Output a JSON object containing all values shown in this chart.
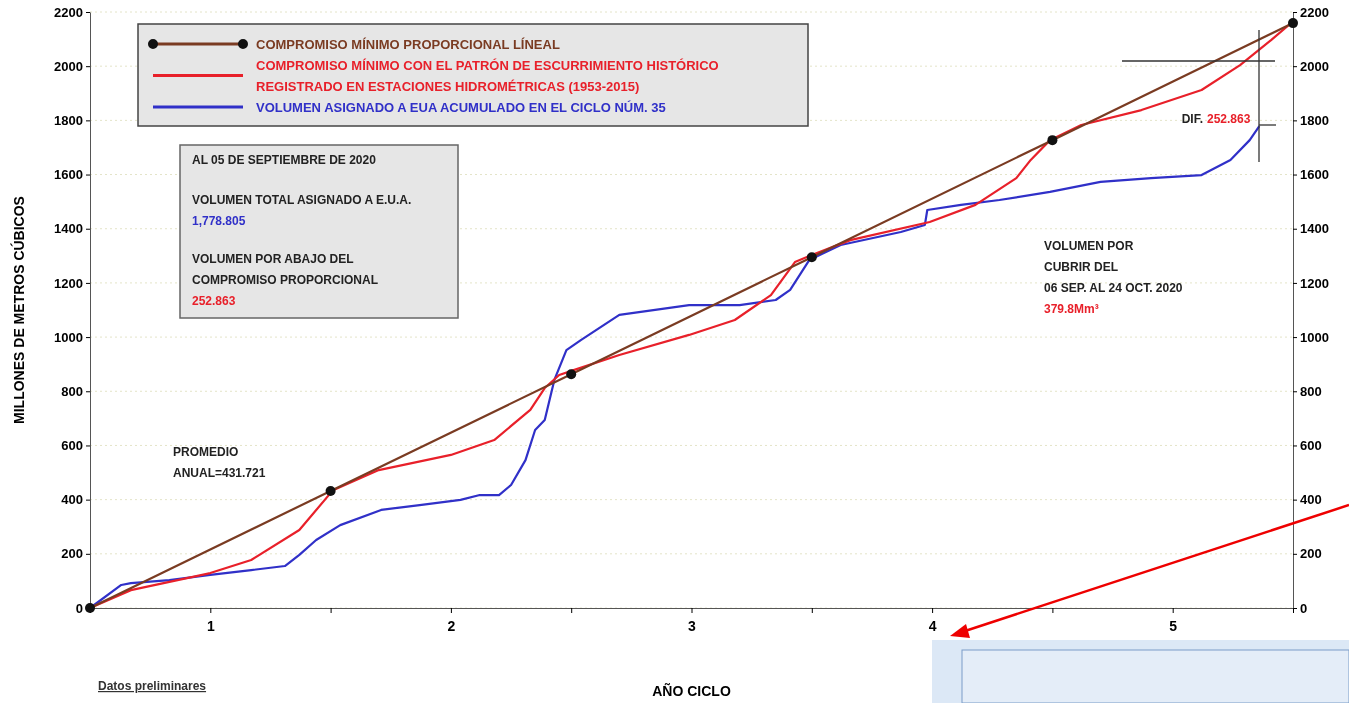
{
  "chart_data": {
    "type": "line",
    "xlabel": "AÑO CICLO",
    "ylabel": "MILLONES DE METROS CÚBICOS",
    "xlim": [
      0.5,
      5.5
    ],
    "xticks": [
      {
        "value": 0.5,
        "label": null
      },
      1,
      {
        "value": 1.5,
        "label": null
      },
      2,
      {
        "value": 2.5,
        "label": null
      },
      3,
      {
        "value": 3.5,
        "label": null
      },
      4,
      {
        "value": 4.5,
        "label": null
      },
      5,
      {
        "value": 5.5,
        "label": null
      }
    ],
    "ylim": [
      0,
      2200
    ],
    "yticks": [
      0,
      200,
      400,
      600,
      800,
      1000,
      1200,
      1400,
      1600,
      1800,
      2000,
      2200
    ],
    "y2lim": [
      0,
      2200
    ],
    "y2ticks": [
      0,
      200,
      400,
      600,
      800,
      1000,
      1200,
      1400,
      1600,
      1800,
      2000,
      2200
    ],
    "grid": "y",
    "legend": "top left",
    "series": [
      {
        "name": "COMPROMISO MÍNIMO PROPORCIONAL LÍNEAL",
        "color": "#7a3b22",
        "marker": "circle",
        "x": [
          0.5,
          1.5,
          2.5,
          3.5,
          4.5,
          5.5
        ],
        "values": [
          0,
          432,
          863,
          1295,
          1727,
          2159
        ]
      },
      {
        "name": "COMPROMISO MÍNIMO CON EL PATRÓN DE ESCURRIMIENTO HISTÓRICO REGISTRADO EN ESTACIONES HIDROMÉTRICAS (1953-2015)",
        "color": "#e8202a",
        "marker": "none",
        "x": [
          0.5,
          0.67,
          1.0,
          1.17,
          1.37,
          1.51,
          1.7,
          2.0,
          2.18,
          2.33,
          2.39,
          2.45,
          2.51,
          2.7,
          2.99,
          3.18,
          3.33,
          3.43,
          3.5,
          3.66,
          3.99,
          4.18,
          4.35,
          4.41,
          4.49,
          4.62,
          4.87,
          5.12,
          5.28,
          5.41,
          5.5
        ],
        "values": [
          0,
          66,
          129,
          177,
          288,
          435,
          509,
          565,
          620,
          731,
          812,
          860,
          878,
          934,
          1008,
          1063,
          1155,
          1277,
          1303,
          1358,
          1425,
          1488,
          1587,
          1654,
          1727,
          1783,
          1838,
          1912,
          2004,
          2097,
          2165
        ]
      },
      {
        "name": "VOLUMEN ASIGNADO A EUA ACUMULADO EN EL CICLO NÚM. 35",
        "color": "#3030c8",
        "marker": "none",
        "x": [
          0.5,
          0.63,
          0.67,
          0.83,
          1.0,
          1.17,
          1.31,
          1.37,
          1.44,
          1.54,
          1.71,
          1.87,
          2.04,
          2.12,
          2.2,
          2.25,
          2.31,
          2.35,
          2.39,
          2.43,
          2.48,
          2.54,
          2.7,
          2.99,
          3.2,
          3.35,
          3.41,
          3.49,
          3.62,
          3.87,
          3.97,
          3.98,
          4.12,
          4.28,
          4.49,
          4.7,
          4.91,
          5.12,
          5.24,
          5.32,
          5.36
        ],
        "values": [
          0,
          85,
          92,
          103,
          122,
          140,
          155,
          196,
          251,
          306,
          362,
          380,
          399,
          417,
          417,
          454,
          546,
          657,
          694,
          842,
          952,
          989,
          1082,
          1118,
          1118,
          1137,
          1174,
          1285,
          1340,
          1388,
          1414,
          1469,
          1488,
          1506,
          1536,
          1573,
          1587,
          1598,
          1654,
          1727,
          1779
        ]
      }
    ],
    "annotations": [
      "AL 05 DE SEPTIEMBRE DE 2020",
      "VOLUMEN TOTAL ASIGNADO A E.U.A.",
      "1,778.805",
      "VOLUMEN POR ABAJO DEL",
      "COMPROMISO PROPORCIONAL",
      "252.863",
      "PROMEDIO ANUAL=431.721",
      "DIF.",
      "252.863",
      "VOLUMEN POR",
      "CUBRIR DEL",
      "06 SEP. AL 24 OCT. 2020",
      "379.8Mm³",
      "Datos preliminares"
    ]
  }
}
